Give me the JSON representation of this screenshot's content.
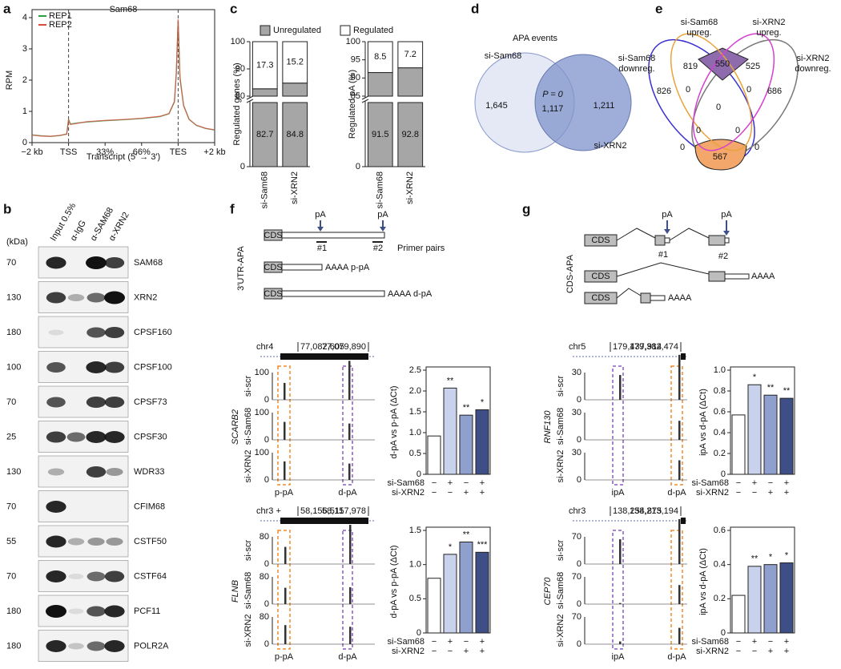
{
  "panel_labels": [
    "a",
    "b",
    "c",
    "d",
    "e",
    "f",
    "g"
  ],
  "chart_data": [
    {
      "type": "line",
      "title": "Sam68",
      "ylabel": "RPM",
      "xlabel": "Transcript (5′ → 3′)",
      "x": [
        0,
        5,
        10,
        15,
        19,
        20,
        21,
        25,
        30,
        40,
        50,
        60,
        70,
        75,
        78,
        79,
        80,
        81,
        83,
        86,
        90,
        95,
        100
      ],
      "series": [
        {
          "name": "REP1",
          "color": "#2e9e44",
          "values": [
            0.25,
            0.22,
            0.2,
            0.22,
            0.28,
            0.75,
            0.6,
            0.63,
            0.66,
            0.7,
            0.73,
            0.77,
            0.83,
            0.92,
            1.3,
            2.2,
            3.9,
            2.1,
            1.2,
            0.75,
            0.55,
            0.45,
            0.4
          ]
        },
        {
          "name": "REP2",
          "color": "#d84a3a",
          "values": [
            0.24,
            0.21,
            0.2,
            0.23,
            0.27,
            0.72,
            0.58,
            0.62,
            0.67,
            0.71,
            0.74,
            0.78,
            0.84,
            0.93,
            1.32,
            2.25,
            3.95,
            2.05,
            1.18,
            0.74,
            0.56,
            0.46,
            0.41
          ]
        }
      ],
      "xlim": [
        0,
        100
      ],
      "xticks": [
        {
          "value": 0,
          "label": "−2 kb"
        },
        {
          "value": 20,
          "label": "TSS"
        },
        {
          "value": 40,
          "label": "33%"
        },
        {
          "value": 60,
          "label": "66%"
        },
        {
          "value": 80,
          "label": "TES"
        },
        {
          "value": 100,
          "label": "+2 kb"
        }
      ],
      "ylim": [
        0,
        4
      ],
      "yticks": [
        0,
        1,
        2,
        3,
        4
      ],
      "legend": "upper-left"
    },
    {
      "type": "stacked_bar",
      "ylabel": "Regulated genes (%)",
      "categories": [
        "si-Sam68",
        "si-XRN2"
      ],
      "series": [
        {
          "name": "Unregulated",
          "color": "#a6a6a6",
          "values": [
            82.7,
            84.8
          ]
        },
        {
          "name": "Regulated",
          "color": "#ffffff",
          "values": [
            17.3,
            15.2
          ]
        }
      ],
      "ylim": [
        0,
        100
      ],
      "yticks": [
        0,
        80,
        90,
        100
      ],
      "axis_break": [
        10,
        80
      ]
    },
    {
      "type": "stacked_bar",
      "ylabel": "Regulated pA (%)",
      "categories": [
        "si-Sam68",
        "si-XRN2"
      ],
      "series": [
        {
          "color": "#a6a6a6",
          "values": [
            91.5,
            92.8
          ]
        },
        {
          "color": "#ffffff",
          "values": [
            8.5,
            7.2
          ]
        }
      ],
      "ylim": [
        0,
        100
      ],
      "yticks": [
        0,
        85,
        90,
        95,
        100
      ],
      "axis_break": [
        10,
        85
      ]
    },
    {
      "type": "bar",
      "ylabel": "d-pA vs p-pA (ΔCt)",
      "values": [
        0.92,
        2.07,
        1.42,
        1.55
      ],
      "colors": [
        "#ffffff",
        "#c9d2ec",
        "#8fa0cf",
        "#3d4f86"
      ],
      "ylim": [
        0,
        2.5
      ],
      "yticks": [
        0,
        0.5,
        {
          "value": 1,
          "label": "1.0"
        },
        1.5,
        {
          "value": 2,
          "label": "2.0"
        },
        2.5
      ],
      "significance": [
        null,
        "**",
        "**",
        "*"
      ],
      "treatments": [
        {
          "name": "si-Sam68",
          "signs": [
            "−",
            "+",
            "−",
            "+"
          ]
        },
        {
          "name": "si-XRN2",
          "signs": [
            "−",
            "−",
            "+",
            "+"
          ]
        }
      ]
    },
    {
      "type": "bar",
      "ylabel": "d-pA vs p-pA (ΔCt)",
      "values": [
        0.8,
        1.15,
        1.33,
        1.18
      ],
      "colors": [
        "#ffffff",
        "#c9d2ec",
        "#8fa0cf",
        "#3d4f86"
      ],
      "ylim": [
        0,
        1.5
      ],
      "yticks": [
        0,
        0.5,
        {
          "value": 1,
          "label": "1.0"
        },
        1.5
      ],
      "significance": [
        null,
        "*",
        "**",
        "***"
      ],
      "treatments": [
        {
          "name": "si-Sam68",
          "signs": [
            "−",
            "+",
            "−",
            "+"
          ]
        },
        {
          "name": "si-XRN2",
          "signs": [
            "−",
            "−",
            "+",
            "+"
          ]
        }
      ]
    },
    {
      "type": "bar",
      "ylabel": "ipA vs d-pA (ΔCt)",
      "values": [
        0.57,
        0.86,
        0.76,
        0.73
      ],
      "colors": [
        "#ffffff",
        "#c9d2ec",
        "#8fa0cf",
        "#3d4f86"
      ],
      "ylim": [
        0,
        1
      ],
      "yticks": [
        0,
        0.2,
        0.4,
        0.6,
        0.8,
        {
          "value": 1,
          "label": "1.0"
        }
      ],
      "significance": [
        null,
        "*",
        "**",
        "**"
      ],
      "treatments": [
        {
          "name": "si-Sam68",
          "signs": [
            "−",
            "+",
            "−",
            "+"
          ]
        },
        {
          "name": "si-XRN2",
          "signs": [
            "−",
            "−",
            "+",
            "+"
          ]
        }
      ]
    },
    {
      "type": "bar",
      "ylabel": "ipA vs d-pA (ΔCt)",
      "values": [
        0.22,
        0.39,
        0.4,
        0.41
      ],
      "colors": [
        "#ffffff",
        "#c9d2ec",
        "#8fa0cf",
        "#3d4f86"
      ],
      "ylim": [
        0,
        0.6
      ],
      "yticks": [
        0,
        0.2,
        0.4,
        0.6
      ],
      "significance": [
        null,
        "**",
        "*",
        "*"
      ],
      "treatments": [
        {
          "name": "si-Sam68",
          "signs": [
            "−",
            "+",
            "−",
            "+"
          ]
        },
        {
          "name": "si-XRN2",
          "signs": [
            "−",
            "−",
            "+",
            "+"
          ]
        }
      ]
    }
  ],
  "blot": {
    "unit": "(kDa)",
    "lanes": [
      "Input 0.5%",
      "α-IgG",
      "α-SAM68",
      "α-XRN2"
    ],
    "rows": [
      {
        "marker": "70",
        "protein": "SAM68"
      },
      {
        "marker": "130",
        "protein": "XRN2"
      },
      {
        "marker": "180",
        "protein": "CPSF160"
      },
      {
        "marker": "100",
        "protein": "CPSF100"
      },
      {
        "marker": "70",
        "protein": "CPSF73"
      },
      {
        "marker": "25",
        "protein": "CPSF30"
      },
      {
        "marker": "130",
        "protein": "WDR33"
      },
      {
        "marker": "70",
        "protein": "CFIM68"
      },
      {
        "marker": "55",
        "protein": "CSTF50"
      },
      {
        "marker": "70",
        "protein": "CSTF64"
      },
      {
        "marker": "180",
        "protein": "PCF11"
      },
      {
        "marker": "180",
        "protein": "POLR2A"
      }
    ]
  },
  "venn_d": {
    "title": "APA events",
    "sets": [
      "si-Sam68",
      "si-XRN2"
    ],
    "counts": [
      "1,645",
      "1,117",
      "1,211"
    ],
    "p_value": "P = 0"
  },
  "venn_e": {
    "sets": [
      [
        "si-Sam68",
        "upreg."
      ],
      [
        "si-XRN2",
        "upreg."
      ],
      [
        "si-Sam68",
        "downreg."
      ],
      [
        "si-XRN2",
        "downreg."
      ]
    ],
    "regions": [
      "819",
      "550",
      "525",
      "826",
      "0",
      "0",
      "686",
      "0",
      "0",
      "0",
      "0",
      "0",
      "567"
    ]
  },
  "diagram_f": {
    "title": "3′UTR-APA",
    "pa": "pA",
    "primers": [
      "#1",
      "#2"
    ],
    "primer_label": "Primer pairs",
    "cds": "CDS",
    "polya": "AAAA",
    "isoforms": [
      "p-pA",
      "d-pA"
    ]
  },
  "diagram_g": {
    "title": "CDS-APA",
    "pa": "pA",
    "primers": [
      "#1",
      "#2"
    ],
    "cds": "CDS",
    "polya": "AAAA"
  },
  "tracks": [
    {
      "gene": "SCARB2",
      "locus": "chr4",
      "coords": [
        "77,082,605",
        "77,079,890"
      ],
      "samples": [
        "si-scr",
        "si-Sam68",
        "si-XRN2"
      ],
      "ticks": [
        "100",
        "0"
      ],
      "sites": [
        "p-pA",
        "d-pA"
      ]
    },
    {
      "gene": "FLNB",
      "locus": "chr3 +",
      "coords": [
        "58,156,511",
        "58,157,978"
      ],
      "samples": [
        "si-scr",
        "si-Sam68",
        "si-XRN2"
      ],
      "ticks": [
        "80",
        "0"
      ],
      "sites": [
        "p-pA",
        "d-pA"
      ]
    },
    {
      "gene": "RNF130",
      "locus": "chr5",
      "coords": [
        "179,437,914",
        "179,382,474"
      ],
      "samples": [
        "si-scr",
        "si-Sam68",
        "si-XRN2"
      ],
      "ticks": [
        "30",
        "0"
      ],
      "sites": [
        "ipA",
        "d-pA"
      ]
    },
    {
      "gene": "CEP70",
      "locus": "chr3",
      "coords": [
        "138,254,875",
        "138,213,194"
      ],
      "samples": [
        "si-scr",
        "si-Sam68",
        "si-XRN2"
      ],
      "ticks": [
        "70",
        "0"
      ],
      "sites": [
        "ipA",
        "d-pA"
      ]
    }
  ]
}
